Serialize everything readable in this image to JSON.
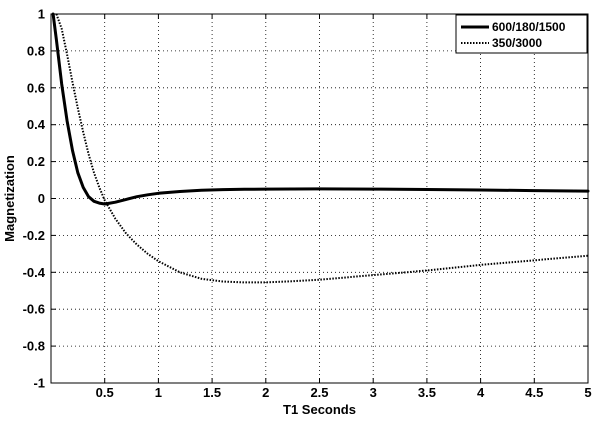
{
  "chart_data": {
    "type": "line",
    "title": "",
    "xlabel": "T1 Seconds",
    "ylabel": "Magnetization",
    "xlim": [
      0,
      5
    ],
    "ylim": [
      -1,
      1
    ],
    "grid": true,
    "legend_position": "top-right",
    "x_ticks": [
      0.5,
      1,
      1.5,
      2,
      2.5,
      3,
      3.5,
      4,
      4.5,
      5
    ],
    "x_tick_labels": [
      "0.5",
      "1",
      "1.5",
      "2",
      "2.5",
      "3",
      "3.5",
      "4",
      "4.5",
      "5"
    ],
    "y_ticks": [
      1,
      0.8,
      0.6,
      0.4,
      0.2,
      0,
      -0.2,
      -0.4,
      -0.6,
      -0.8,
      -1
    ],
    "y_tick_labels": [
      "1",
      "0.8",
      "0.6",
      "0.4",
      "0.2",
      "0",
      "-0.2",
      "-0.4",
      "-0.6",
      "-0.8",
      "-1"
    ],
    "series": [
      {
        "name": "600/180/1500",
        "style": "solid",
        "color": "#000000",
        "x": [
          0.02,
          0.05,
          0.1,
          0.15,
          0.2,
          0.25,
          0.3,
          0.35,
          0.4,
          0.45,
          0.5,
          0.55,
          0.6,
          0.7,
          0.8,
          0.9,
          1.0,
          1.2,
          1.4,
          1.6,
          1.8,
          2.0,
          2.5,
          3.0,
          3.5,
          4.0,
          4.5,
          5.0
        ],
        "y": [
          1.0,
          0.86,
          0.62,
          0.42,
          0.26,
          0.14,
          0.06,
          0.01,
          -0.015,
          -0.025,
          -0.03,
          -0.025,
          -0.02,
          -0.005,
          0.01,
          0.02,
          0.028,
          0.038,
          0.045,
          0.048,
          0.05,
          0.051,
          0.052,
          0.051,
          0.049,
          0.046,
          0.043,
          0.04
        ]
      },
      {
        "name": "350/3000",
        "style": "dotted",
        "color": "#000000",
        "x": [
          0.05,
          0.1,
          0.15,
          0.2,
          0.25,
          0.3,
          0.35,
          0.4,
          0.45,
          0.5,
          0.6,
          0.7,
          0.8,
          0.9,
          1.0,
          1.2,
          1.4,
          1.6,
          1.8,
          2.0,
          2.2,
          2.5,
          3.0,
          3.5,
          4.0,
          4.5,
          5.0
        ],
        "y": [
          1.0,
          0.92,
          0.78,
          0.63,
          0.49,
          0.36,
          0.24,
          0.14,
          0.06,
          -0.01,
          -0.11,
          -0.19,
          -0.25,
          -0.3,
          -0.34,
          -0.4,
          -0.435,
          -0.45,
          -0.455,
          -0.455,
          -0.45,
          -0.44,
          -0.415,
          -0.39,
          -0.36,
          -0.335,
          -0.31
        ]
      }
    ]
  }
}
